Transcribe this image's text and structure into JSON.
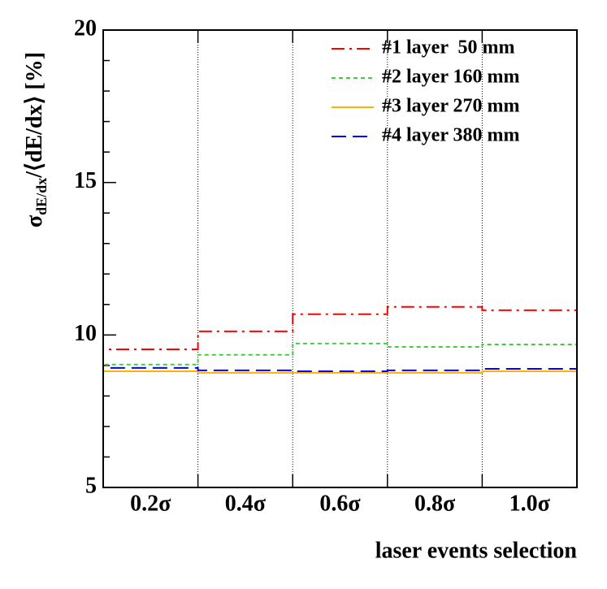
{
  "chart_data": {
    "type": "step",
    "y_label": [
      "σ",
      "dE/dx",
      "/⟨dE/dx⟩ [%]"
    ],
    "x_label": "laser events selection",
    "categories": [
      "0.2σ",
      "0.4σ",
      "0.6σ",
      "0.8σ",
      "1.0σ"
    ],
    "series": [
      {
        "name": "#1 layer  50 mm",
        "color": "#ff0000",
        "dash": "16 6 3 6",
        "values": [
          9.53,
          10.12,
          10.68,
          10.92,
          10.81
        ]
      },
      {
        "name": "#2 layer 160 mm",
        "color": "#44cc44",
        "dash": "5 4",
        "values": [
          9.03,
          9.35,
          9.72,
          9.61,
          9.69
        ]
      },
      {
        "name": "#3 layer 270 mm",
        "color": "#ffb000",
        "dash": "none",
        "values": [
          8.81,
          8.76,
          8.76,
          8.76,
          8.81
        ]
      },
      {
        "name": "#4 layer 380 mm",
        "color": "#0000ff",
        "dash": "18 8",
        "values": [
          8.92,
          8.84,
          8.81,
          8.84,
          8.89
        ]
      }
    ],
    "ylim": [
      5,
      20
    ],
    "yticks": [
      5,
      10,
      15,
      20
    ],
    "yticks_minor": [
      6,
      7,
      8,
      9,
      11,
      12,
      13,
      14,
      16,
      17,
      18,
      19
    ],
    "grid": true,
    "legend": "upper right"
  }
}
